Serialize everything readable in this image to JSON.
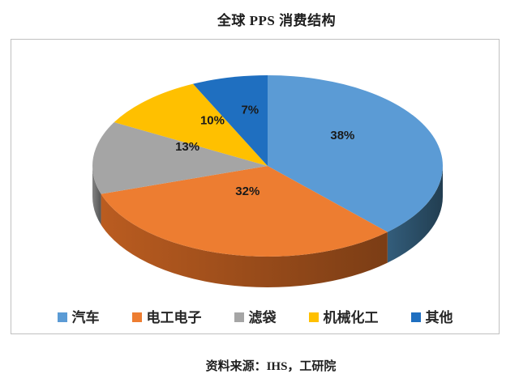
{
  "title": "全球 PPS 消费结构",
  "source_note": "资料来源：IHS，工研院",
  "chart_data": {
    "type": "pie",
    "style": "3d-pie",
    "title": "全球 PPS 消费结构",
    "start_angle_deg": 0,
    "direction": "clockwise",
    "legend_position": "bottom",
    "unit": "%",
    "categories": [
      "汽车",
      "电工电子",
      "滤袋",
      "机械化工",
      "其他"
    ],
    "values": [
      38,
      32,
      13,
      10,
      7
    ],
    "slices": [
      {
        "label": "汽车",
        "value": 38,
        "pct_label": "38%",
        "color": "#5B9BD5",
        "side_color": "#2B4F68"
      },
      {
        "label": "电工电子",
        "value": 32,
        "pct_label": "32%",
        "color": "#ED7D31",
        "side_color": "#9E4E1B"
      },
      {
        "label": "滤袋",
        "value": 13,
        "pct_label": "13%",
        "color": "#A5A5A5",
        "side_color": "#6E6E6E"
      },
      {
        "label": "机械化工",
        "value": 10,
        "pct_label": "10%",
        "color": "#FFC000",
        "side_color": "#9C7500"
      },
      {
        "label": "其他",
        "value": 7,
        "pct_label": "7%",
        "color": "#1F6FC0",
        "side_color": "#133F63"
      }
    ],
    "source_note": "资料来源：IHS，工研院"
  },
  "colors": {
    "background": "#FFFFFF",
    "plot_border": "#C0C0C0",
    "label_text": "#1A1A1A",
    "title_text": "#1C1C1C"
  }
}
